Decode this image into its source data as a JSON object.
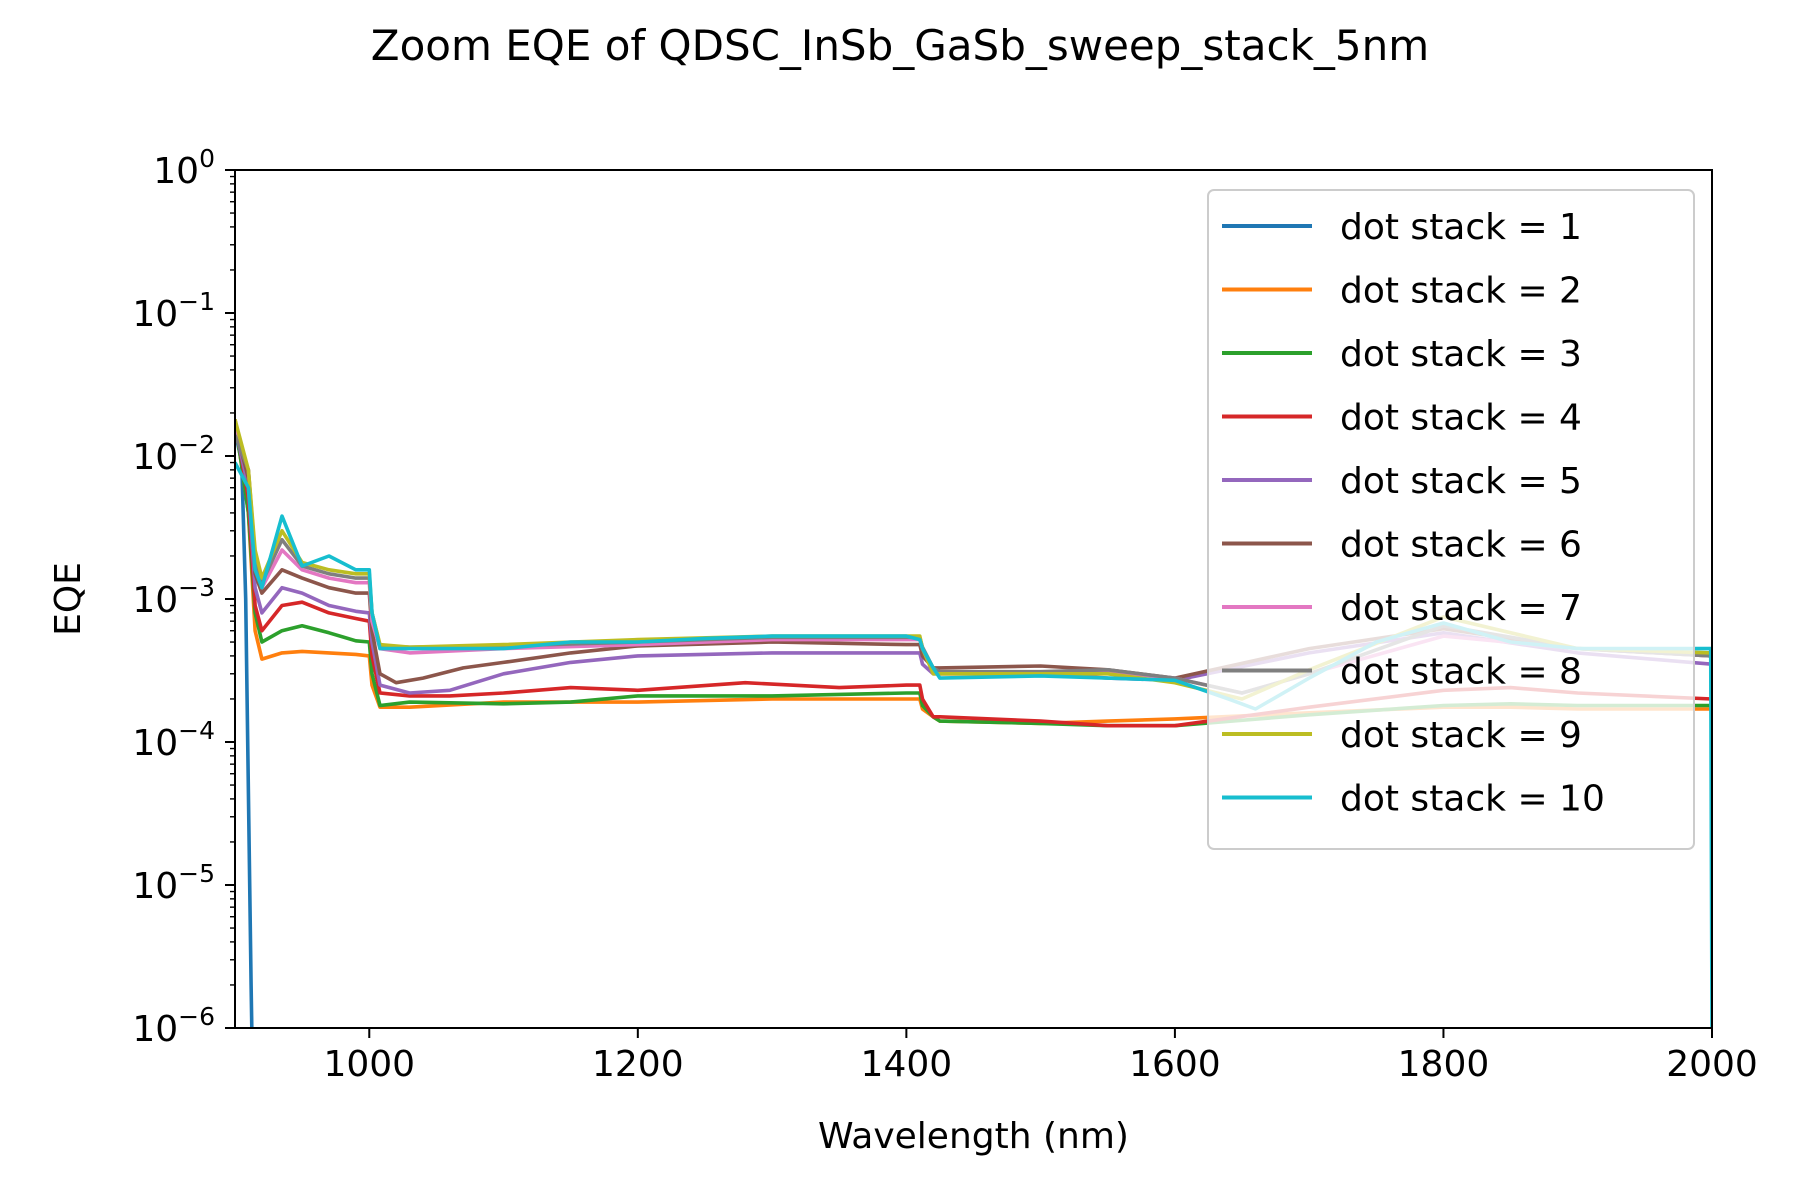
{
  "chart_data": {
    "type": "line",
    "title": "Zoom EQE of QDSC_InSb_GaSb_sweep_stack_5nm",
    "xlabel": "Wavelength (nm)",
    "ylabel": "EQE",
    "xlim": [
      900,
      2000
    ],
    "ylim": [
      1e-06,
      1
    ],
    "yscale": "log",
    "grid": false,
    "legend_position": "upper right",
    "x_ticks": [
      "1000",
      "1200",
      "1400",
      "1600",
      "1800",
      "2000"
    ],
    "y_ticks": [
      {
        "base": "10",
        "exp": "0"
      },
      {
        "base": "10",
        "exp": "−1"
      },
      {
        "base": "10",
        "exp": "−2"
      },
      {
        "base": "10",
        "exp": "−3"
      },
      {
        "base": "10",
        "exp": "−4"
      },
      {
        "base": "10",
        "exp": "−5"
      },
      {
        "base": "10",
        "exp": "−6"
      }
    ],
    "series": [
      {
        "name": "dot stack = 1",
        "color": "#1f77b4",
        "x": [
          900,
          905,
          908,
          912,
          913
        ],
        "y": [
          0.015,
          0.009,
          0.001,
          2e-06,
          5e-07
        ]
      },
      {
        "name": "dot stack = 2",
        "color": "#ff7f0e",
        "x": [
          900,
          910,
          915,
          920,
          935,
          950,
          970,
          990,
          1000,
          1002,
          1008,
          1030,
          1100,
          1200,
          1300,
          1400,
          1410,
          1412,
          1420,
          1425,
          1500,
          1550,
          1600,
          1700,
          1800,
          1850,
          1900,
          2000
        ],
        "y": [
          0.018,
          0.004,
          0.0006,
          0.00038,
          0.00042,
          0.00043,
          0.00042,
          0.00041,
          0.0004,
          0.00025,
          0.000175,
          0.000175,
          0.00019,
          0.00019,
          0.0002,
          0.0002,
          0.0002,
          0.00017,
          0.00015,
          0.00014,
          0.000135,
          0.00014,
          0.000145,
          0.00016,
          0.000175,
          0.000175,
          0.00017,
          0.00017
        ]
      },
      {
        "name": "dot stack = 3",
        "color": "#2ca02c",
        "x": [
          900,
          910,
          915,
          920,
          935,
          950,
          970,
          990,
          1000,
          1002,
          1008,
          1030,
          1100,
          1150,
          1200,
          1300,
          1400,
          1410,
          1412,
          1420,
          1425,
          1500,
          1550,
          1600,
          1700,
          1800,
          1850,
          1900,
          2000
        ],
        "y": [
          0.018,
          0.004,
          0.0008,
          0.0005,
          0.0006,
          0.00065,
          0.00058,
          0.00051,
          0.0005,
          0.0003,
          0.00018,
          0.00019,
          0.000185,
          0.00019,
          0.00021,
          0.00021,
          0.00022,
          0.00022,
          0.00018,
          0.00015,
          0.00014,
          0.000135,
          0.00013,
          0.00013,
          0.000155,
          0.00018,
          0.000185,
          0.00018,
          0.00018
        ]
      },
      {
        "name": "dot stack = 4",
        "color": "#d62728",
        "x": [
          900,
          910,
          915,
          920,
          935,
          950,
          970,
          990,
          1000,
          1002,
          1008,
          1030,
          1060,
          1100,
          1150,
          1200,
          1280,
          1350,
          1400,
          1410,
          1412,
          1420,
          1425,
          1500,
          1550,
          1600,
          1700,
          1800,
          1850,
          1900,
          2000
        ],
        "y": [
          0.018,
          0.005,
          0.0009,
          0.0006,
          0.0009,
          0.00095,
          0.0008,
          0.00073,
          0.0007,
          0.0004,
          0.00022,
          0.00021,
          0.00021,
          0.00022,
          0.00024,
          0.00023,
          0.00026,
          0.00024,
          0.00025,
          0.00025,
          0.0002,
          0.00015,
          0.00015,
          0.00014,
          0.00013,
          0.00013,
          0.000175,
          0.00023,
          0.00024,
          0.00022,
          0.0002
        ]
      },
      {
        "name": "dot stack = 5",
        "color": "#9467bd",
        "x": [
          900,
          910,
          915,
          920,
          935,
          950,
          970,
          990,
          1000,
          1002,
          1008,
          1030,
          1060,
          1100,
          1150,
          1200,
          1300,
          1400,
          1410,
          1412,
          1420,
          1425,
          1500,
          1550,
          1600,
          1700,
          1800,
          1900,
          2000
        ],
        "y": [
          0.016,
          0.006,
          0.0012,
          0.0008,
          0.0012,
          0.0011,
          0.0009,
          0.00082,
          0.0008,
          0.0005,
          0.00025,
          0.00022,
          0.00023,
          0.0003,
          0.00036,
          0.0004,
          0.00042,
          0.00042,
          0.00042,
          0.00035,
          0.0003,
          0.0003,
          0.0003,
          0.00028,
          0.00027,
          0.00042,
          0.00058,
          0.00042,
          0.00035
        ]
      },
      {
        "name": "dot stack = 6",
        "color": "#8c564b",
        "x": [
          900,
          910,
          915,
          920,
          935,
          950,
          970,
          990,
          1000,
          1002,
          1008,
          1020,
          1040,
          1070,
          1100,
          1150,
          1200,
          1300,
          1400,
          1410,
          1412,
          1420,
          1425,
          1500,
          1550,
          1600,
          1700,
          1800,
          1900,
          2000
        ],
        "y": [
          0.016,
          0.007,
          0.0015,
          0.0011,
          0.0016,
          0.0014,
          0.0012,
          0.0011,
          0.0011,
          0.0006,
          0.0003,
          0.00026,
          0.00028,
          0.00033,
          0.00036,
          0.00042,
          0.00047,
          0.0005,
          0.00048,
          0.00048,
          0.0004,
          0.00033,
          0.00033,
          0.00034,
          0.00032,
          0.00028,
          0.00045,
          0.00062,
          0.00045,
          0.0004
        ]
      },
      {
        "name": "dot stack = 7",
        "color": "#e377c2",
        "x": [
          900,
          910,
          915,
          920,
          935,
          950,
          970,
          990,
          1000,
          1002,
          1008,
          1030,
          1100,
          1200,
          1300,
          1400,
          1410,
          1412,
          1420,
          1425,
          1500,
          1550,
          1600,
          1650,
          1700,
          1800,
          1900,
          2000
        ],
        "y": [
          0.015,
          0.008,
          0.0018,
          0.0012,
          0.0022,
          0.0016,
          0.0014,
          0.0013,
          0.0013,
          0.0007,
          0.00045,
          0.00042,
          0.00045,
          0.00048,
          0.00052,
          0.00052,
          0.00052,
          0.00045,
          0.00032,
          0.0003,
          0.0003,
          0.00031,
          0.00028,
          0.00022,
          0.0003,
          0.00055,
          0.00045,
          0.0004
        ]
      },
      {
        "name": "dot stack = 8",
        "color": "#7f7f7f",
        "x": [
          900,
          910,
          915,
          920,
          935,
          950,
          970,
          990,
          1000,
          1002,
          1008,
          1030,
          1100,
          1200,
          1300,
          1400,
          1410,
          1412,
          1420,
          1425,
          1500,
          1550,
          1600,
          1650,
          1700,
          1800,
          1900,
          2000
        ],
        "y": [
          0.014,
          0.008,
          0.002,
          0.0013,
          0.0026,
          0.0017,
          0.0015,
          0.0014,
          0.0014,
          0.0008,
          0.00047,
          0.00046,
          0.00047,
          0.0005,
          0.00054,
          0.00054,
          0.00054,
          0.00046,
          0.00033,
          0.00031,
          0.00031,
          0.00032,
          0.00028,
          0.00022,
          0.0003,
          0.00065,
          0.00045,
          0.0004
        ]
      },
      {
        "name": "dot stack = 9",
        "color": "#bcbd22",
        "x": [
          900,
          910,
          915,
          920,
          935,
          950,
          970,
          990,
          1000,
          1002,
          1008,
          1030,
          1100,
          1200,
          1300,
          1400,
          1410,
          1412,
          1420,
          1425,
          1500,
          1550,
          1600,
          1650,
          1700,
          1800,
          1900,
          2000
        ],
        "y": [
          0.018,
          0.008,
          0.0022,
          0.0014,
          0.003,
          0.0018,
          0.0016,
          0.0015,
          0.0015,
          0.0008,
          0.00048,
          0.00046,
          0.00048,
          0.00052,
          0.00055,
          0.00055,
          0.00055,
          0.00045,
          0.0003,
          0.0003,
          0.0003,
          0.0003,
          0.00026,
          0.0002,
          0.00032,
          0.00075,
          0.00045,
          0.00042
        ]
      },
      {
        "name": "dot stack = 10",
        "color": "#17becf",
        "x": [
          900,
          910,
          915,
          920,
          935,
          950,
          970,
          990,
          1000,
          1002,
          1008,
          1030,
          1100,
          1150,
          1200,
          1250,
          1300,
          1350,
          1400,
          1410,
          1412,
          1420,
          1425,
          1500,
          1550,
          1600,
          1640,
          1660,
          1700,
          1750,
          1800,
          1850,
          1900,
          1950,
          1999,
          2000
        ],
        "y": [
          0.009,
          0.006,
          0.0016,
          0.0012,
          0.0038,
          0.0017,
          0.002,
          0.0016,
          0.0016,
          0.0008,
          0.00045,
          0.00045,
          0.00045,
          0.0005,
          0.0005,
          0.00053,
          0.00055,
          0.00055,
          0.00055,
          0.00052,
          0.00045,
          0.00033,
          0.00028,
          0.00029,
          0.00028,
          0.00027,
          0.0002,
          0.00017,
          0.00028,
          0.0005,
          0.00068,
          0.0005,
          0.00045,
          0.00045,
          0.00045,
          1e-06
        ]
      }
    ]
  }
}
